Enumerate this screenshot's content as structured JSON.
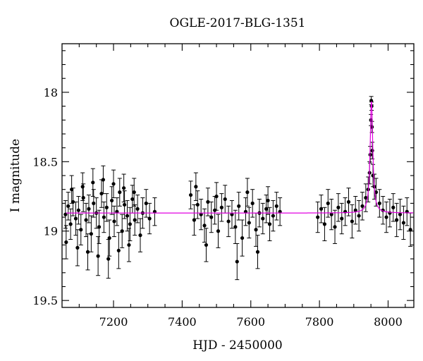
{
  "chart_data": {
    "type": "scatter",
    "title": "OGLE-2017-BLG-1351",
    "xlabel": "HJD - 2450000",
    "ylabel": "I magnitude",
    "xlim": [
      7050,
      8075
    ],
    "ylim": [
      19.55,
      17.65
    ],
    "y_inverted": true,
    "x_ticks": [
      7200,
      7400,
      7600,
      7800,
      8000
    ],
    "x_tick_labels": [
      "7200",
      "7400",
      "7600",
      "7800",
      "8000"
    ],
    "y_ticks": [
      18.0,
      18.5,
      19.0,
      19.5
    ],
    "y_tick_labels": [
      "18",
      "18.5",
      "19",
      "19.5"
    ],
    "grid": false,
    "colors": {
      "data": "#000000",
      "model": "#e000e0"
    },
    "series": [
      {
        "kind": "points_with_errorbars",
        "x": [
          7060,
          7068,
          7075,
          7082,
          7090,
          7098,
          7105,
          7112,
          7120,
          7128,
          7135,
          7142,
          7150,
          7158,
          7165,
          7172,
          7180,
          7188,
          7195,
          7202,
          7210,
          7218,
          7225,
          7232,
          7240,
          7248,
          7255,
          7262,
          7270,
          7278,
          7285,
          7295,
          7305,
          7320,
          7062,
          7078,
          7095,
          7110,
          7125,
          7140,
          7155,
          7170,
          7185,
          7200,
          7215,
          7230,
          7245,
          7260,
          7425,
          7435,
          7445,
          7455,
          7465,
          7475,
          7485,
          7495,
          7505,
          7515,
          7525,
          7535,
          7545,
          7555,
          7565,
          7575,
          7585,
          7595,
          7605,
          7615,
          7625,
          7635,
          7645,
          7655,
          7665,
          7675,
          7685,
          7440,
          7470,
          7500,
          7560,
          7590,
          7620,
          7650,
          7795,
          7805,
          7815,
          7825,
          7835,
          7845,
          7855,
          7865,
          7875,
          7885,
          7895,
          7905,
          7915,
          7925,
          7935,
          7942,
          7946,
          7948,
          7950,
          7951,
          7952,
          7953,
          7954,
          7956,
          7960,
          7965,
          7975,
          7985,
          7995,
          8005,
          8015,
          8025,
          8035,
          8045,
          8055,
          8065
        ],
        "y": [
          18.88,
          18.82,
          18.95,
          18.79,
          18.91,
          18.85,
          18.99,
          18.76,
          18.92,
          18.84,
          19.02,
          18.8,
          18.87,
          18.97,
          18.73,
          18.9,
          18.83,
          19.05,
          18.78,
          18.93,
          18.86,
          18.72,
          19.0,
          18.81,
          18.89,
          18.95,
          18.77,
          18.92,
          18.84,
          19.03,
          18.87,
          18.8,
          18.91,
          18.86,
          19.08,
          18.7,
          19.12,
          18.68,
          19.15,
          18.65,
          19.18,
          18.63,
          19.2,
          18.66,
          19.14,
          18.69,
          19.1,
          18.72,
          18.74,
          18.92,
          18.81,
          18.88,
          18.96,
          18.79,
          18.9,
          18.85,
          19.0,
          18.83,
          18.77,
          18.93,
          18.88,
          18.97,
          18.82,
          19.05,
          18.86,
          18.94,
          18.8,
          18.99,
          18.87,
          18.91,
          18.84,
          18.95,
          18.89,
          18.82,
          18.86,
          18.68,
          19.1,
          18.75,
          19.22,
          18.72,
          19.15,
          18.78,
          18.9,
          18.84,
          18.95,
          18.8,
          18.88,
          18.97,
          18.83,
          18.91,
          18.86,
          18.79,
          18.93,
          18.85,
          18.89,
          18.82,
          18.76,
          18.7,
          18.58,
          18.45,
          18.2,
          18.06,
          18.1,
          18.25,
          18.42,
          18.6,
          18.68,
          18.72,
          18.8,
          18.85,
          18.9,
          18.87,
          18.83,
          18.92,
          18.88,
          18.94,
          18.86,
          18.99
        ],
        "err": [
          0.1,
          0.1,
          0.11,
          0.1,
          0.12,
          0.1,
          0.11,
          0.1,
          0.12,
          0.1,
          0.13,
          0.1,
          0.11,
          0.12,
          0.1,
          0.11,
          0.1,
          0.13,
          0.1,
          0.11,
          0.1,
          0.1,
          0.12,
          0.1,
          0.11,
          0.12,
          0.1,
          0.11,
          0.1,
          0.12,
          0.11,
          0.1,
          0.11,
          0.1,
          0.12,
          0.1,
          0.13,
          0.1,
          0.13,
          0.1,
          0.14,
          0.1,
          0.14,
          0.1,
          0.13,
          0.1,
          0.12,
          0.1,
          0.1,
          0.11,
          0.1,
          0.11,
          0.12,
          0.1,
          0.11,
          0.1,
          0.12,
          0.1,
          0.1,
          0.11,
          0.1,
          0.12,
          0.1,
          0.13,
          0.1,
          0.11,
          0.1,
          0.12,
          0.1,
          0.11,
          0.1,
          0.12,
          0.11,
          0.1,
          0.1,
          0.1,
          0.12,
          0.1,
          0.13,
          0.1,
          0.12,
          0.1,
          0.11,
          0.1,
          0.12,
          0.1,
          0.11,
          0.12,
          0.1,
          0.11,
          0.1,
          0.1,
          0.12,
          0.1,
          0.11,
          0.1,
          0.1,
          0.09,
          0.08,
          0.06,
          0.04,
          0.03,
          0.03,
          0.04,
          0.06,
          0.08,
          0.09,
          0.1,
          0.1,
          0.1,
          0.11,
          0.1,
          0.1,
          0.12,
          0.11,
          0.12,
          0.1,
          0.12
        ]
      },
      {
        "kind": "model_curve",
        "baseline": 18.87,
        "t0": 7951.5,
        "peak": 18.06,
        "tE": 8
      }
    ]
  }
}
